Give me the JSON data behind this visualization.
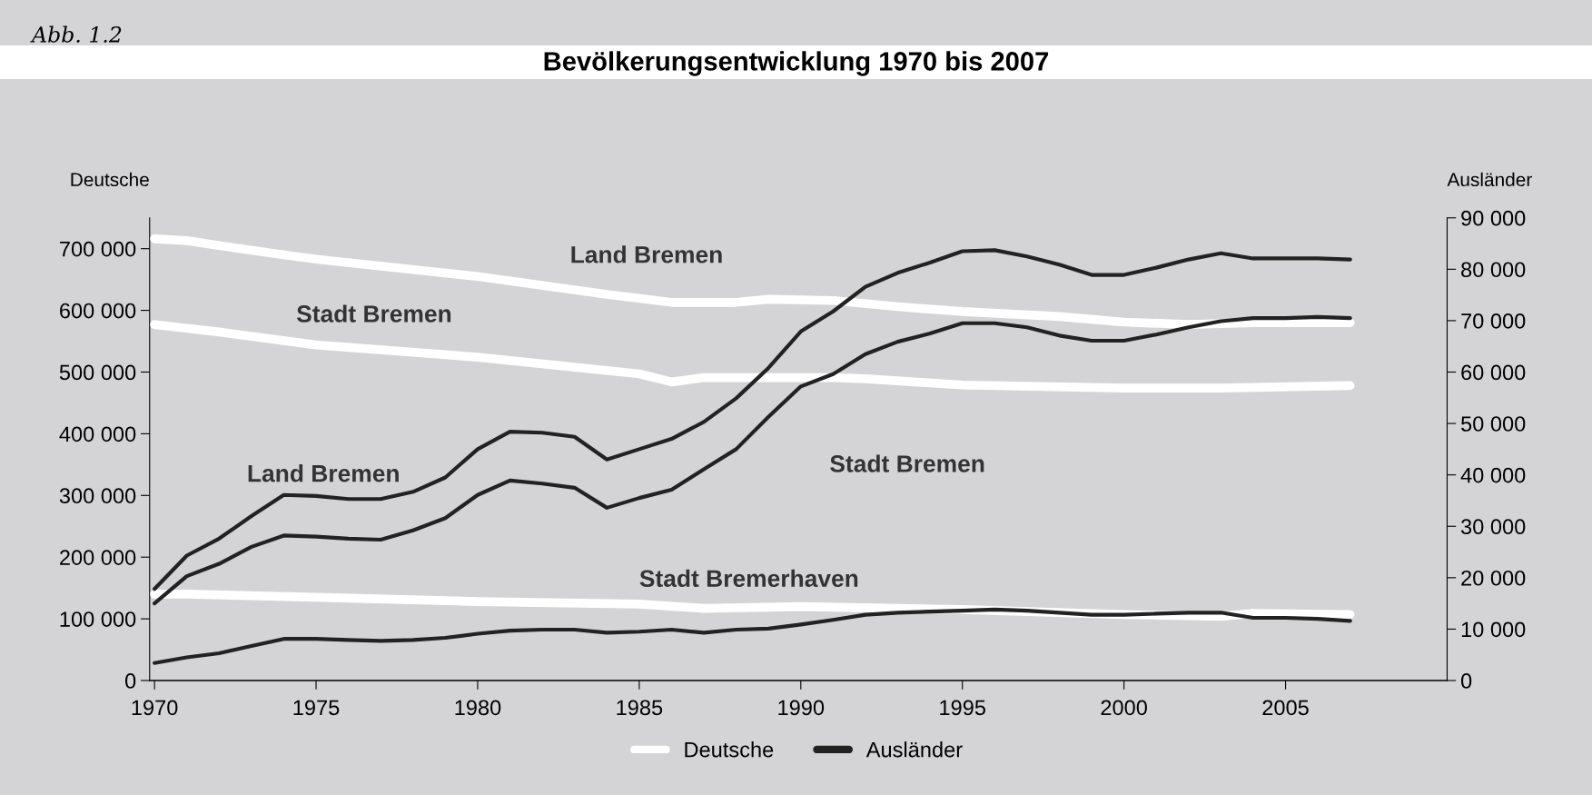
{
  "chart_data": {
    "type": "line",
    "title": "Bevölkerungsentwicklung 1970 bis 2007",
    "ylabel": "Deutsche",
    "y2label": "Ausländer",
    "x": [
      1970,
      1971,
      1972,
      1973,
      1974,
      1975,
      1976,
      1977,
      1978,
      1979,
      1980,
      1981,
      1982,
      1983,
      1984,
      1985,
      1986,
      1987,
      1988,
      1989,
      1990,
      1991,
      1992,
      1993,
      1994,
      1995,
      1996,
      1997,
      1998,
      1999,
      2000,
      2001,
      2002,
      2003,
      2004,
      2005,
      2006,
      2007
    ],
    "series": [
      {
        "name": "Deutsche",
        "color": "#ffffff",
        "x": [
          1970,
          1971,
          1972,
          1974,
          1975,
          1980,
          1984,
          1986,
          1988,
          1989,
          1991,
          1993,
          1995,
          1998,
          2000,
          2002,
          2004,
          2007
        ],
        "values": [
          716000,
          713000,
          705000,
          690000,
          683000,
          655000,
          626000,
          613000,
          613000,
          618000,
          616000,
          606000,
          598000,
          590000,
          581000,
          577000,
          580000,
          580000
        ]
      },
      {
        "color": "#ffffff",
        "x": [
          1970,
          1972,
          1975,
          1980,
          1985,
          1986,
          1987,
          1989,
          1991,
          1992,
          1995,
          2000,
          2003,
          2007
        ],
        "values": [
          577000,
          565000,
          544000,
          524000,
          497000,
          484000,
          491000,
          491000,
          491000,
          489000,
          479000,
          474000,
          474000,
          478000
        ]
      },
      {
        "color": "#ffffff",
        "x": [
          1970,
          1971,
          1975,
          1980,
          1985,
          1987,
          1990,
          1995,
          2000,
          2003,
          2004,
          2007
        ],
        "values": [
          140000,
          140000,
          135000,
          128000,
          124000,
          117000,
          120000,
          115000,
          107000,
          104000,
          109000,
          107000
        ]
      },
      {
        "name": "Ausländer",
        "color": "#222222",
        "axis": "y2",
        "values": [
          17800,
          24300,
          27600,
          32000,
          36100,
          35900,
          35300,
          35300,
          36700,
          39500,
          45000,
          48400,
          48200,
          47400,
          43000,
          45000,
          47000,
          50300,
          54900,
          60800,
          67900,
          71800,
          76600,
          79300,
          81300,
          83500,
          83700,
          82500,
          80900,
          78900,
          78900,
          80300,
          81900,
          83100,
          82100,
          82100,
          82100,
          81900
        ]
      },
      {
        "color": "#222222",
        "axis": "y2",
        "values": [
          15000,
          20300,
          22700,
          26000,
          28200,
          28000,
          27600,
          27400,
          29200,
          31600,
          36100,
          38900,
          38300,
          37500,
          33600,
          35500,
          37100,
          41100,
          45000,
          51300,
          57200,
          59600,
          63500,
          65900,
          67500,
          69500,
          69500,
          68700,
          67100,
          66100,
          66100,
          67300,
          68700,
          69900,
          70500,
          70500,
          70700,
          70500
        ]
      },
      {
        "color": "#222222",
        "axis": "y2",
        "values": [
          3400,
          4500,
          5300,
          6700,
          8100,
          8100,
          7900,
          7700,
          7900,
          8300,
          9100,
          9700,
          9900,
          9900,
          9300,
          9500,
          9900,
          9300,
          9900,
          10100,
          10900,
          11800,
          12800,
          13200,
          13400,
          13600,
          13800,
          13600,
          13200,
          12800,
          12800,
          13000,
          13200,
          13200,
          12200,
          12200,
          12000,
          11600
        ]
      }
    ],
    "xlim": [
      1969.85,
      2010
    ],
    "xticks": [
      1970,
      1975,
      1980,
      1985,
      1990,
      1995,
      2000,
      2005
    ],
    "ylim": [
      0,
      750000
    ],
    "yticks": [
      0,
      {
        "value": 100000,
        "label": "100 000"
      },
      {
        "value": 200000,
        "label": "200 000"
      },
      {
        "value": 300000,
        "label": "300 000"
      },
      {
        "value": 400000,
        "label": "400 000"
      },
      {
        "value": 500000,
        "label": "500 000"
      },
      {
        "value": 600000,
        "label": "600 000"
      },
      {
        "value": 700000,
        "label": "700 000"
      }
    ],
    "y2lim": [
      0,
      90000
    ],
    "y2ticks": [
      0,
      {
        "value": 10000,
        "label": "10 000"
      },
      {
        "value": 20000,
        "label": "20 000"
      },
      {
        "value": 30000,
        "label": "30 000"
      },
      {
        "value": 40000,
        "label": "40 000"
      },
      {
        "value": 50000,
        "label": "50 000"
      },
      {
        "value": 60000,
        "label": "60 000"
      },
      {
        "value": 70000,
        "label": "70 000"
      },
      {
        "value": 80000,
        "label": "80 000"
      },
      {
        "value": 90000,
        "label": "90 000"
      }
    ],
    "grid": false,
    "legend": "bottom",
    "marker": "none",
    "line_style": "solid",
    "annotations": [
      "Abb. 1.2",
      "Land Bremen",
      "Stadt Bremen",
      "Land Bremen",
      "Stadt Bremen",
      "Stadt Bremerhaven"
    ]
  }
}
